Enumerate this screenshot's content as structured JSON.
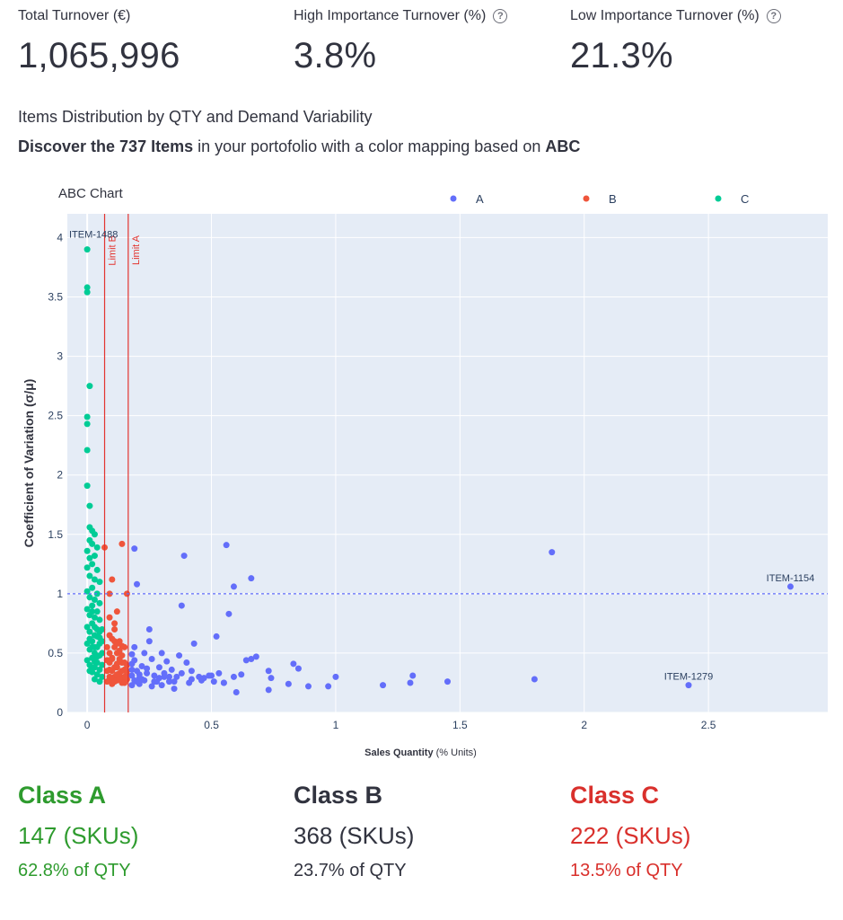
{
  "metrics": [
    {
      "label": "Total Turnover (€)",
      "value": "1,065,996",
      "help": false
    },
    {
      "label": "High Importance Turnover (%)",
      "value": "3.8%",
      "help": true
    },
    {
      "label": "Low Importance Turnover (%)",
      "value": "21.3%",
      "help": true
    }
  ],
  "subtitle": "Items Distribution by QTY and Demand Variability",
  "discover": {
    "bold1": "Discover the 737 Items",
    "mid": " in your portofolio with a color mapping based on ",
    "bold2": "ABC"
  },
  "chart_data": {
    "type": "scatter",
    "title": "ABC Chart",
    "xlabel_bold": "Sales Quantity",
    "xlabel_rest": " (% Units)",
    "ylabel": "Coefficient of Variation (σ/μ)",
    "xlim": [
      -0.08,
      2.98
    ],
    "ylim": [
      0,
      4.2
    ],
    "xticks": [
      0,
      0.5,
      1,
      1.5,
      2,
      2.5
    ],
    "yticks": [
      0,
      0.5,
      1,
      1.5,
      2,
      2.5,
      3,
      3.5,
      4
    ],
    "grid": true,
    "legend_position": "top",
    "series": [
      {
        "name": "A",
        "color": "#636efa",
        "points": [
          [
            2.83,
            1.06
          ],
          [
            2.42,
            0.23
          ],
          [
            1.87,
            1.35
          ],
          [
            1.8,
            0.28
          ],
          [
            1.45,
            0.26
          ],
          [
            1.31,
            0.31
          ],
          [
            1.3,
            0.25
          ],
          [
            1.19,
            0.23
          ],
          [
            1.0,
            0.3
          ],
          [
            0.97,
            0.22
          ],
          [
            0.89,
            0.22
          ],
          [
            0.85,
            0.37
          ],
          [
            0.83,
            0.41
          ],
          [
            0.81,
            0.24
          ],
          [
            0.74,
            0.29
          ],
          [
            0.73,
            0.35
          ],
          [
            0.73,
            0.19
          ],
          [
            0.68,
            0.47
          ],
          [
            0.66,
            1.13
          ],
          [
            0.66,
            0.45
          ],
          [
            0.64,
            0.44
          ],
          [
            0.6,
            0.17
          ],
          [
            0.59,
            1.06
          ],
          [
            0.59,
            0.3
          ],
          [
            0.57,
            0.83
          ],
          [
            0.56,
            1.41
          ],
          [
            0.55,
            0.25
          ],
          [
            0.53,
            0.33
          ],
          [
            0.52,
            0.64
          ],
          [
            0.51,
            0.26
          ],
          [
            0.49,
            0.31
          ],
          [
            0.47,
            0.29
          ],
          [
            0.45,
            0.3
          ],
          [
            0.43,
            0.58
          ],
          [
            0.42,
            0.35
          ],
          [
            0.41,
            0.25
          ],
          [
            0.39,
            1.32
          ],
          [
            0.38,
            0.9
          ],
          [
            0.4,
            0.42
          ],
          [
            0.37,
            0.48
          ],
          [
            0.36,
            0.3
          ],
          [
            0.35,
            0.2
          ],
          [
            0.34,
            0.36
          ],
          [
            0.33,
            0.26
          ],
          [
            0.32,
            0.43
          ],
          [
            0.31,
            0.3
          ],
          [
            0.3,
            0.23
          ],
          [
            0.3,
            0.5
          ],
          [
            0.29,
            0.38
          ],
          [
            0.28,
            0.26
          ],
          [
            0.27,
            0.31
          ],
          [
            0.26,
            0.22
          ],
          [
            0.26,
            0.45
          ],
          [
            0.25,
            0.6
          ],
          [
            0.25,
            0.7
          ],
          [
            0.24,
            0.33
          ],
          [
            0.23,
            0.27
          ],
          [
            0.23,
            0.5
          ],
          [
            0.22,
            0.39
          ],
          [
            0.21,
            0.24
          ],
          [
            0.21,
            0.29
          ],
          [
            0.2,
            1.08
          ],
          [
            0.2,
            0.35
          ],
          [
            0.19,
            1.38
          ],
          [
            0.19,
            0.55
          ],
          [
            0.19,
            0.27
          ],
          [
            0.18,
            0.41
          ],
          [
            0.18,
            0.31
          ],
          [
            0.18,
            0.23
          ],
          [
            0.18,
            0.36
          ],
          [
            0.18,
            0.49
          ],
          [
            0.19,
            0.44
          ],
          [
            0.2,
            0.26
          ],
          [
            0.21,
            0.32
          ],
          [
            0.22,
            0.28
          ],
          [
            0.24,
            0.37
          ],
          [
            0.27,
            0.26
          ],
          [
            0.29,
            0.29
          ],
          [
            0.31,
            0.33
          ],
          [
            0.33,
            0.3
          ],
          [
            0.35,
            0.26
          ],
          [
            0.38,
            0.33
          ],
          [
            0.42,
            0.28
          ],
          [
            0.46,
            0.27
          ],
          [
            0.5,
            0.31
          ],
          [
            0.55,
            0.25
          ],
          [
            0.62,
            0.32
          ]
        ]
      },
      {
        "name": "B",
        "color": "#ef553b",
        "points": [
          [
            0.14,
            1.42
          ],
          [
            0.07,
            1.39
          ],
          [
            0.1,
            1.12
          ],
          [
            0.16,
            1.0
          ],
          [
            0.09,
            1.0
          ],
          [
            0.12,
            0.85
          ],
          [
            0.09,
            0.8
          ],
          [
            0.11,
            0.7
          ],
          [
            0.13,
            0.6
          ],
          [
            0.15,
            0.55
          ],
          [
            0.08,
            0.55
          ],
          [
            0.1,
            0.45
          ],
          [
            0.12,
            0.5
          ],
          [
            0.14,
            0.42
          ],
          [
            0.16,
            0.4
          ],
          [
            0.08,
            0.35
          ],
          [
            0.09,
            0.3
          ],
          [
            0.1,
            0.35
          ],
          [
            0.11,
            0.3
          ],
          [
            0.12,
            0.27
          ],
          [
            0.13,
            0.33
          ],
          [
            0.14,
            0.29
          ],
          [
            0.15,
            0.25
          ],
          [
            0.16,
            0.32
          ],
          [
            0.09,
            0.42
          ],
          [
            0.11,
            0.38
          ],
          [
            0.13,
            0.45
          ],
          [
            0.15,
            0.36
          ],
          [
            0.08,
            0.26
          ],
          [
            0.1,
            0.28
          ],
          [
            0.12,
            0.38
          ],
          [
            0.14,
            0.35
          ],
          [
            0.16,
            0.28
          ],
          [
            0.09,
            0.5
          ],
          [
            0.11,
            0.55
          ],
          [
            0.13,
            0.3
          ],
          [
            0.15,
            0.42
          ],
          [
            0.1,
            0.24
          ],
          [
            0.12,
            0.32
          ],
          [
            0.14,
            0.25
          ],
          [
            0.08,
            0.44
          ],
          [
            0.11,
            0.6
          ],
          [
            0.13,
            0.52
          ],
          [
            0.15,
            0.3
          ],
          [
            0.09,
            0.36
          ],
          [
            0.1,
            0.46
          ],
          [
            0.12,
            0.41
          ],
          [
            0.14,
            0.48
          ],
          [
            0.16,
            0.35
          ],
          [
            0.11,
            0.26
          ],
          [
            0.13,
            0.28
          ],
          [
            0.1,
            0.62
          ],
          [
            0.12,
            0.58
          ],
          [
            0.09,
            0.65
          ],
          [
            0.11,
            0.75
          ],
          [
            0.14,
            0.56
          ]
        ]
      },
      {
        "name": "C",
        "color": "#00cc96",
        "points": [
          [
            0.0,
            3.9
          ],
          [
            0.0,
            3.58
          ],
          [
            0.0,
            3.54
          ],
          [
            0.01,
            2.75
          ],
          [
            0.0,
            2.49
          ],
          [
            0.0,
            2.43
          ],
          [
            0.0,
            2.21
          ],
          [
            0.0,
            1.91
          ],
          [
            0.01,
            1.74
          ],
          [
            0.01,
            1.56
          ],
          [
            0.02,
            1.53
          ],
          [
            0.03,
            1.5
          ],
          [
            0.01,
            1.45
          ],
          [
            0.02,
            1.42
          ],
          [
            0.04,
            1.39
          ],
          [
            0.0,
            1.36
          ],
          [
            0.01,
            1.3
          ],
          [
            0.03,
            1.32
          ],
          [
            0.02,
            1.25
          ],
          [
            0.0,
            1.22
          ],
          [
            0.04,
            1.2
          ],
          [
            0.01,
            1.15
          ],
          [
            0.03,
            1.12
          ],
          [
            0.05,
            1.1
          ],
          [
            0.02,
            1.05
          ],
          [
            0.0,
            1.02
          ],
          [
            0.04,
            1.0
          ],
          [
            0.01,
            0.97
          ],
          [
            0.03,
            0.95
          ],
          [
            0.05,
            0.92
          ],
          [
            0.02,
            0.9
          ],
          [
            0.0,
            0.87
          ],
          [
            0.04,
            0.85
          ],
          [
            0.01,
            0.82
          ],
          [
            0.03,
            0.8
          ],
          [
            0.05,
            0.78
          ],
          [
            0.02,
            0.75
          ],
          [
            0.0,
            0.72
          ],
          [
            0.04,
            0.7
          ],
          [
            0.01,
            0.68
          ],
          [
            0.03,
            0.65
          ],
          [
            0.05,
            0.63
          ],
          [
            0.02,
            0.6
          ],
          [
            0.0,
            0.58
          ],
          [
            0.04,
            0.55
          ],
          [
            0.01,
            0.53
          ],
          [
            0.03,
            0.5
          ],
          [
            0.05,
            0.48
          ],
          [
            0.02,
            0.46
          ],
          [
            0.0,
            0.44
          ],
          [
            0.04,
            0.42
          ],
          [
            0.01,
            0.4
          ],
          [
            0.03,
            0.38
          ],
          [
            0.05,
            0.36
          ],
          [
            0.02,
            0.34
          ],
          [
            0.04,
            0.32
          ],
          [
            0.06,
            0.3
          ],
          [
            0.03,
            0.28
          ],
          [
            0.05,
            0.26
          ],
          [
            0.06,
            0.5
          ],
          [
            0.06,
            0.7
          ],
          [
            0.06,
            0.4
          ],
          [
            0.02,
            0.55
          ],
          [
            0.03,
            0.72
          ],
          [
            0.01,
            0.62
          ],
          [
            0.05,
            0.58
          ],
          [
            0.04,
            0.64
          ],
          [
            0.02,
            0.85
          ],
          [
            0.03,
            0.43
          ],
          [
            0.01,
            0.35
          ],
          [
            0.05,
            0.68
          ],
          [
            0.06,
            0.6
          ],
          [
            0.04,
            0.47
          ],
          [
            0.02,
            0.38
          ],
          [
            0.03,
            0.55
          ]
        ]
      }
    ],
    "reference_lines": [
      {
        "orientation": "vertical",
        "x": 0.07,
        "label": "Limit B",
        "color": "#e3342f"
      },
      {
        "orientation": "vertical",
        "x": 0.165,
        "label": "Limit A",
        "color": "#e3342f"
      },
      {
        "orientation": "horizontal",
        "y": 1.0,
        "style": "dashed",
        "color": "#636efa"
      }
    ],
    "annotations": [
      {
        "text": "ITEM-1488",
        "x": 0.0,
        "y": 3.9
      },
      {
        "text": "ITEM-1154",
        "x": 2.83,
        "y": 1.06
      },
      {
        "text": "ITEM-1279",
        "x": 2.42,
        "y": 0.23
      }
    ]
  },
  "classes": [
    {
      "title": "Class A",
      "skus": "147 (SKUs)",
      "qty": "62.8% of QTY",
      "color": "#2e9b2e"
    },
    {
      "title": "Class B",
      "skus": "368 (SKUs)",
      "qty": "23.7% of QTY",
      "color": "#31333f"
    },
    {
      "title": "Class C",
      "skus": "222 (SKUs)",
      "qty": "13.5% of QTY",
      "color": "#d9302c"
    }
  ]
}
